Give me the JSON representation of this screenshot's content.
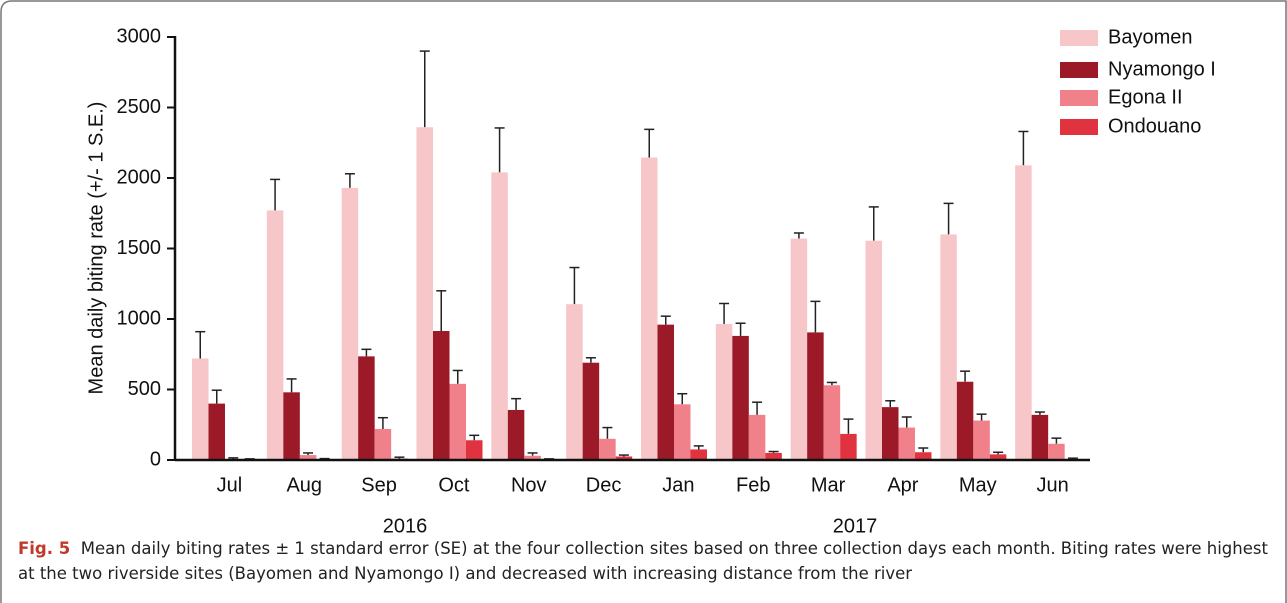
{
  "chart_data": {
    "type": "bar",
    "categories": [
      "Jul",
      "Aug",
      "Sep",
      "Oct",
      "Nov",
      "Dec",
      "Jan",
      "Feb",
      "Mar",
      "Apr",
      "May",
      "Jun"
    ],
    "years": [
      "2016",
      "2017"
    ],
    "ylabel": "Mean daily biting rate (+/- 1 S.E.)",
    "ylim": [
      0,
      3000
    ],
    "yticks": [
      0,
      500,
      1000,
      1500,
      2000,
      2500,
      3000
    ],
    "legend": "top-right",
    "series": [
      {
        "name": "Bayomen",
        "color": "#f6c6c9",
        "values": [
          720,
          1770,
          1930,
          2360,
          2040,
          1105,
          2145,
          965,
          1570,
          1555,
          1600,
          2090
        ],
        "errors": [
          190,
          220,
          100,
          540,
          315,
          260,
          200,
          145,
          40,
          240,
          220,
          240
        ]
      },
      {
        "name": "Nyamongo I",
        "color": "#9c1a27",
        "values": [
          400,
          480,
          735,
          915,
          355,
          690,
          960,
          880,
          905,
          375,
          555,
          320
        ],
        "errors": [
          95,
          95,
          50,
          285,
          80,
          35,
          60,
          90,
          220,
          45,
          75,
          20
        ]
      },
      {
        "name": "Egona II",
        "color": "#f0808a",
        "values": [
          5,
          35,
          220,
          540,
          30,
          150,
          395,
          320,
          530,
          230,
          280,
          115
        ],
        "errors": [
          10,
          15,
          80,
          95,
          20,
          80,
          75,
          90,
          20,
          75,
          45,
          40
        ]
      },
      {
        "name": "Ondouano",
        "color": "#e0323f",
        "values": [
          5,
          5,
          10,
          140,
          5,
          25,
          75,
          50,
          185,
          55,
          40,
          5
        ],
        "errors": [
          3,
          5,
          10,
          35,
          3,
          10,
          25,
          10,
          105,
          30,
          15,
          8
        ]
      }
    ]
  },
  "caption": {
    "label": "Fig. 5",
    "text": "Mean daily biting rates ± 1 standard error (SE) at the four collection sites based on three collection days each month. Biting rates were highest at the two riverside sites (Bayomen and Nyamongo I) and decreased with increasing distance from the river"
  }
}
